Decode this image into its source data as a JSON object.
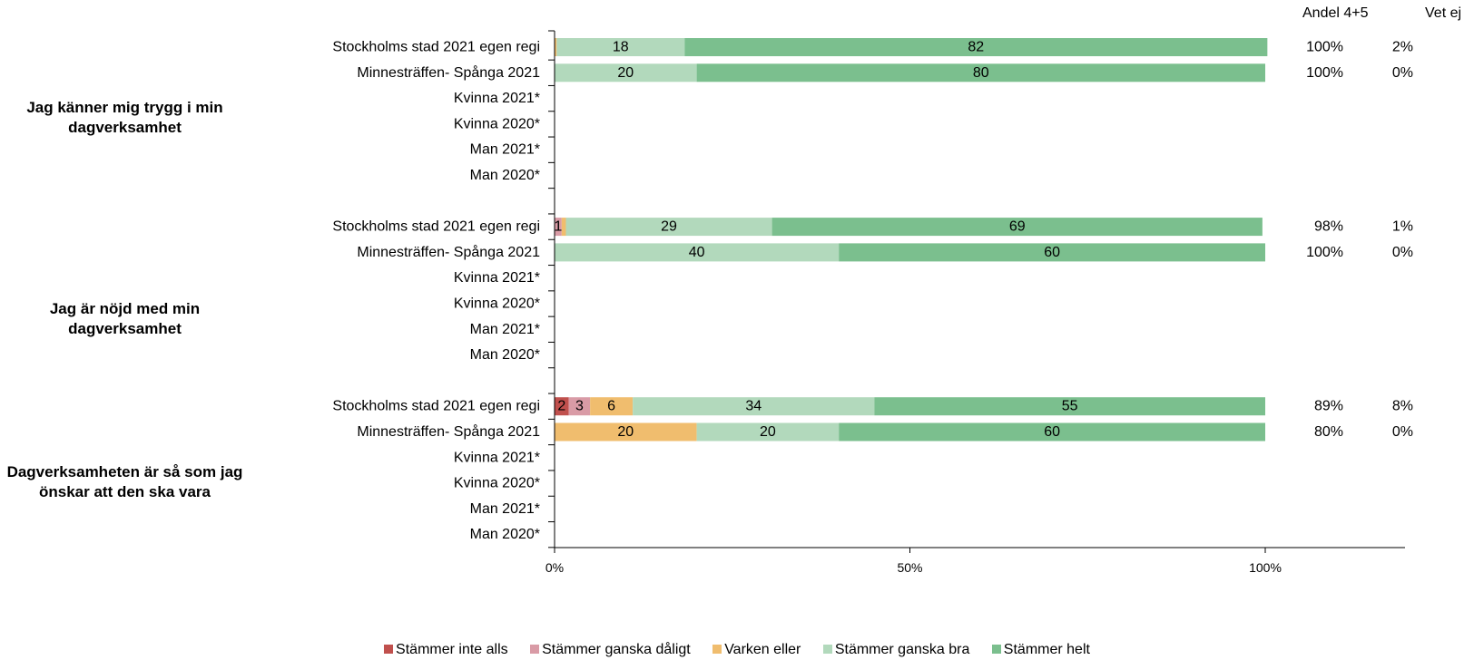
{
  "columns": {
    "andel": "Andel 4+5",
    "vetej": "Vet ej"
  },
  "legend": [
    {
      "label": "Stämmer inte alls",
      "color": "#C0504D"
    },
    {
      "label": "Stämmer ganska dåligt",
      "color": "#D99BA6"
    },
    {
      "label": "Varken eller",
      "color": "#F0BD6E"
    },
    {
      "label": "Stämmer ganska bra",
      "color": "#B2D9BC"
    },
    {
      "label": "Stämmer helt",
      "color": "#7BBF8E"
    }
  ],
  "chart_data": {
    "type": "bar",
    "orientation": "horizontal-stacked-100",
    "xlim": [
      0,
      100
    ],
    "x_ticks": [
      "0%",
      "50%",
      "100%"
    ],
    "groups": [
      {
        "title": "Jag känner mig trygg i min dagverksamhet",
        "rows": [
          {
            "label": "Stockholms stad 2021 egen regi",
            "values": [
              0,
              0,
              0.3,
              18,
              82
            ],
            "labels": [
              "",
              "",
              "",
              "18",
              "82"
            ],
            "andel": "100%",
            "vetej": "2%"
          },
          {
            "label": "Minnesträffen- Spånga 2021",
            "values": [
              0,
              0,
              0,
              20,
              80
            ],
            "labels": [
              "",
              "",
              "",
              "20",
              "80"
            ],
            "andel": "100%",
            "vetej": "0%"
          },
          {
            "label": "Kvinna 2021*",
            "values": [],
            "labels": [],
            "andel": "",
            "vetej": ""
          },
          {
            "label": "Kvinna 2020*",
            "values": [],
            "labels": [],
            "andel": "",
            "vetej": ""
          },
          {
            "label": "Man 2021*",
            "values": [],
            "labels": [],
            "andel": "",
            "vetej": ""
          },
          {
            "label": "Man 2020*",
            "values": [],
            "labels": [],
            "andel": "",
            "vetej": ""
          }
        ]
      },
      {
        "title": "Jag är nöjd med min dagverksamhet",
        "rows": [
          {
            "label": "Stockholms stad 2021 egen regi",
            "values": [
              0,
              1,
              0.6,
              29,
              69
            ],
            "labels": [
              "",
              "1",
              "",
              "29",
              "69"
            ],
            "andel": "98%",
            "vetej": "1%"
          },
          {
            "label": "Minnesträffen- Spånga 2021",
            "values": [
              0,
              0,
              0,
              40,
              60
            ],
            "labels": [
              "",
              "",
              "",
              "40",
              "60"
            ],
            "andel": "100%",
            "vetej": "0%"
          },
          {
            "label": "Kvinna 2021*",
            "values": [],
            "labels": [],
            "andel": "",
            "vetej": ""
          },
          {
            "label": "Kvinna 2020*",
            "values": [],
            "labels": [],
            "andel": "",
            "vetej": ""
          },
          {
            "label": "Man 2021*",
            "values": [],
            "labels": [],
            "andel": "",
            "vetej": ""
          },
          {
            "label": "Man 2020*",
            "values": [],
            "labels": [],
            "andel": "",
            "vetej": ""
          }
        ]
      },
      {
        "title": "Dagverksamheten är så som jag önskar att den ska vara",
        "rows": [
          {
            "label": "Stockholms stad 2021 egen regi",
            "values": [
              2,
              3,
              6,
              34,
              55
            ],
            "labels": [
              "2",
              "3",
              "6",
              "34",
              "55"
            ],
            "andel": "89%",
            "vetej": "8%"
          },
          {
            "label": "Minnesträffen- Spånga 2021",
            "values": [
              0,
              0,
              20,
              20,
              60
            ],
            "labels": [
              "",
              "",
              "20",
              "20",
              "60"
            ],
            "andel": "80%",
            "vetej": "0%"
          },
          {
            "label": "Kvinna 2021*",
            "values": [],
            "labels": [],
            "andel": "",
            "vetej": ""
          },
          {
            "label": "Kvinna 2020*",
            "values": [],
            "labels": [],
            "andel": "",
            "vetej": ""
          },
          {
            "label": "Man 2021*",
            "values": [],
            "labels": [],
            "andel": "",
            "vetej": ""
          },
          {
            "label": "Man 2020*",
            "values": [],
            "labels": [],
            "andel": "",
            "vetej": ""
          }
        ]
      }
    ]
  }
}
